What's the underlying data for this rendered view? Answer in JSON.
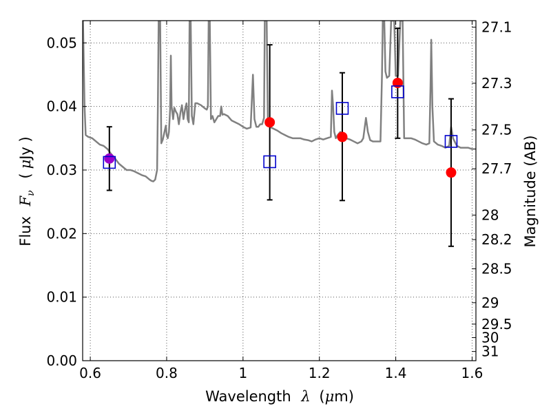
{
  "chart_data": {
    "type": "scatter",
    "xlabel_prefix": "Wavelength",
    "xlabel_symbol": "λ",
    "xlabel_unit_open": "(",
    "xlabel_unit_mu": "μ",
    "xlabel_unit_rest": "m)",
    "ylabel_prefix": "Flux",
    "ylabel_symbol": "F",
    "ylabel_sub": "ν",
    "ylabel_unit_open": "(",
    "ylabel_unit_mu": "μ",
    "ylabel_unit_rest": "Jy )",
    "y2label": "Magnitude (AB)",
    "xlim": [
      0.58,
      1.61
    ],
    "ylim": [
      0.0,
      0.0535
    ],
    "grid": true,
    "x_ticks": [
      {
        "value": 0.6,
        "label": "0.6"
      },
      {
        "value": 0.8,
        "label": "0.8"
      },
      {
        "value": 1.0,
        "label": "1"
      },
      {
        "value": 1.2,
        "label": "1.2"
      },
      {
        "value": 1.4,
        "label": "1.4"
      },
      {
        "value": 1.6,
        "label": "1.6"
      }
    ],
    "y_ticks": [
      {
        "value": 0.0,
        "label": "0.00"
      },
      {
        "value": 0.01,
        "label": "0.01"
      },
      {
        "value": 0.02,
        "label": "0.02"
      },
      {
        "value": 0.03,
        "label": "0.03"
      },
      {
        "value": 0.04,
        "label": "0.04"
      },
      {
        "value": 0.05,
        "label": "0.05"
      }
    ],
    "mag_ticks": [
      {
        "value": 27.1,
        "label": "27.1"
      },
      {
        "value": 27.3,
        "label": "27.3"
      },
      {
        "value": 27.5,
        "label": "27.5"
      },
      {
        "value": 27.7,
        "label": "27.7"
      },
      {
        "value": 28.0,
        "label": "28"
      },
      {
        "value": 28.2,
        "label": "28.2"
      },
      {
        "value": 28.5,
        "label": "28.5"
      },
      {
        "value": 29.0,
        "label": "29"
      },
      {
        "value": 29.5,
        "label": "29.5"
      },
      {
        "value": 30.0,
        "label": "30"
      },
      {
        "value": 31.0,
        "label": "31"
      }
    ],
    "model_spectrum": [
      [
        0.581,
        0.0535
      ],
      [
        0.585,
        0.04
      ],
      [
        0.588,
        0.0355
      ],
      [
        0.595,
        0.0352
      ],
      [
        0.605,
        0.035
      ],
      [
        0.615,
        0.0345
      ],
      [
        0.625,
        0.034
      ],
      [
        0.635,
        0.0338
      ],
      [
        0.645,
        0.0333
      ],
      [
        0.655,
        0.0325
      ],
      [
        0.665,
        0.0318
      ],
      [
        0.675,
        0.031
      ],
      [
        0.685,
        0.0305
      ],
      [
        0.695,
        0.03
      ],
      [
        0.705,
        0.03
      ],
      [
        0.715,
        0.0298
      ],
      [
        0.725,
        0.0295
      ],
      [
        0.735,
        0.0292
      ],
      [
        0.745,
        0.029
      ],
      [
        0.755,
        0.0285
      ],
      [
        0.76,
        0.0283
      ],
      [
        0.765,
        0.0282
      ],
      [
        0.77,
        0.0285
      ],
      [
        0.775,
        0.03
      ],
      [
        0.777,
        0.04
      ],
      [
        0.779,
        0.0535
      ],
      [
        0.783,
        0.0535
      ],
      [
        0.786,
        0.0342
      ],
      [
        0.79,
        0.0348
      ],
      [
        0.795,
        0.0362
      ],
      [
        0.798,
        0.037
      ],
      [
        0.8,
        0.0355
      ],
      [
        0.803,
        0.035
      ],
      [
        0.806,
        0.036
      ],
      [
        0.809,
        0.0395
      ],
      [
        0.811,
        0.048
      ],
      [
        0.813,
        0.04
      ],
      [
        0.817,
        0.038
      ],
      [
        0.82,
        0.0398
      ],
      [
        0.824,
        0.0392
      ],
      [
        0.828,
        0.0388
      ],
      [
        0.832,
        0.0372
      ],
      [
        0.836,
        0.039
      ],
      [
        0.84,
        0.0402
      ],
      [
        0.844,
        0.038
      ],
      [
        0.848,
        0.0395
      ],
      [
        0.852,
        0.0405
      ],
      [
        0.855,
        0.038
      ],
      [
        0.858,
        0.0375
      ],
      [
        0.86,
        0.0535
      ],
      [
        0.863,
        0.0535
      ],
      [
        0.866,
        0.0385
      ],
      [
        0.87,
        0.0372
      ],
      [
        0.875,
        0.0405
      ],
      [
        0.88,
        0.0405
      ],
      [
        0.89,
        0.0402
      ],
      [
        0.9,
        0.0397
      ],
      [
        0.905,
        0.0395
      ],
      [
        0.908,
        0.04
      ],
      [
        0.91,
        0.0535
      ],
      [
        0.913,
        0.0535
      ],
      [
        0.916,
        0.038
      ],
      [
        0.92,
        0.0385
      ],
      [
        0.925,
        0.0375
      ],
      [
        0.93,
        0.038
      ],
      [
        0.935,
        0.0385
      ],
      [
        0.94,
        0.0385
      ],
      [
        0.943,
        0.04
      ],
      [
        0.946,
        0.0387
      ],
      [
        0.95,
        0.0388
      ],
      [
        0.96,
        0.0385
      ],
      [
        0.97,
        0.0378
      ],
      [
        0.98,
        0.0375
      ],
      [
        0.99,
        0.0372
      ],
      [
        1.0,
        0.0368
      ],
      [
        1.01,
        0.0365
      ],
      [
        1.02,
        0.0367
      ],
      [
        1.026,
        0.045
      ],
      [
        1.03,
        0.038
      ],
      [
        1.035,
        0.0368
      ],
      [
        1.04,
        0.0368
      ],
      [
        1.045,
        0.0372
      ],
      [
        1.05,
        0.0372
      ],
      [
        1.055,
        0.0382
      ],
      [
        1.057,
        0.0535
      ],
      [
        1.062,
        0.0535
      ],
      [
        1.065,
        0.0382
      ],
      [
        1.07,
        0.0368
      ],
      [
        1.08,
        0.0365
      ],
      [
        1.09,
        0.0362
      ],
      [
        1.1,
        0.0358
      ],
      [
        1.11,
        0.0355
      ],
      [
        1.12,
        0.0352
      ],
      [
        1.13,
        0.035
      ],
      [
        1.14,
        0.035
      ],
      [
        1.15,
        0.035
      ],
      [
        1.16,
        0.0348
      ],
      [
        1.17,
        0.0347
      ],
      [
        1.18,
        0.0345
      ],
      [
        1.19,
        0.0348
      ],
      [
        1.2,
        0.035
      ],
      [
        1.21,
        0.0348
      ],
      [
        1.22,
        0.035
      ],
      [
        1.23,
        0.0352
      ],
      [
        1.233,
        0.0425
      ],
      [
        1.236,
        0.04
      ],
      [
        1.239,
        0.036
      ],
      [
        1.243,
        0.035
      ],
      [
        1.248,
        0.0355
      ],
      [
        1.255,
        0.036
      ],
      [
        1.26,
        0.0355
      ],
      [
        1.27,
        0.035
      ],
      [
        1.28,
        0.0348
      ],
      [
        1.29,
        0.0345
      ],
      [
        1.3,
        0.0342
      ],
      [
        1.31,
        0.0345
      ],
      [
        1.315,
        0.035
      ],
      [
        1.322,
        0.0382
      ],
      [
        1.327,
        0.036
      ],
      [
        1.333,
        0.0347
      ],
      [
        1.34,
        0.0345
      ],
      [
        1.35,
        0.0345
      ],
      [
        1.36,
        0.0345
      ],
      [
        1.364,
        0.045
      ],
      [
        1.366,
        0.0535
      ],
      [
        1.37,
        0.0535
      ],
      [
        1.373,
        0.0455
      ],
      [
        1.377,
        0.0445
      ],
      [
        1.383,
        0.0448
      ],
      [
        1.388,
        0.0535
      ],
      [
        1.396,
        0.0535
      ],
      [
        1.4,
        0.0448
      ],
      [
        1.406,
        0.0448
      ],
      [
        1.412,
        0.0535
      ],
      [
        1.418,
        0.0535
      ],
      [
        1.422,
        0.035
      ],
      [
        1.43,
        0.035
      ],
      [
        1.44,
        0.035
      ],
      [
        1.45,
        0.0348
      ],
      [
        1.46,
        0.0345
      ],
      [
        1.47,
        0.0342
      ],
      [
        1.48,
        0.034
      ],
      [
        1.488,
        0.0342
      ],
      [
        1.491,
        0.043
      ],
      [
        1.493,
        0.0505
      ],
      [
        1.496,
        0.04
      ],
      [
        1.5,
        0.0345
      ],
      [
        1.51,
        0.034
      ],
      [
        1.52,
        0.0338
      ],
      [
        1.53,
        0.0335
      ],
      [
        1.54,
        0.0338
      ],
      [
        1.545,
        0.0368
      ],
      [
        1.55,
        0.035
      ],
      [
        1.56,
        0.0338
      ],
      [
        1.57,
        0.0335
      ],
      [
        1.58,
        0.0335
      ],
      [
        1.59,
        0.0335
      ],
      [
        1.6,
        0.0333
      ],
      [
        1.61,
        0.0333
      ]
    ],
    "observed": [
      {
        "x": 0.65,
        "y": 0.0318,
        "err_low": 0.0268,
        "err_high": 0.0368,
        "color": "#9b00cc"
      },
      {
        "x": 1.07,
        "y": 0.0375,
        "err_low": 0.0253,
        "err_high": 0.0497,
        "color": "#ff0000"
      },
      {
        "x": 1.26,
        "y": 0.0352,
        "err_low": 0.0252,
        "err_high": 0.0453,
        "color": "#ff0000"
      },
      {
        "x": 1.405,
        "y": 0.0437,
        "err_low": 0.035,
        "err_high": 0.0523,
        "color": "#ff0000"
      },
      {
        "x": 1.545,
        "y": 0.0296,
        "err_low": 0.018,
        "err_high": 0.0412,
        "color": "#ff0000"
      }
    ],
    "model_photometry": [
      {
        "x": 0.65,
        "y": 0.0312
      },
      {
        "x": 1.07,
        "y": 0.0313
      },
      {
        "x": 1.26,
        "y": 0.0397
      },
      {
        "x": 1.405,
        "y": 0.0423
      },
      {
        "x": 1.545,
        "y": 0.0345
      }
    ],
    "colors": {
      "model_line": "#808080",
      "model_square": "#0000cc",
      "errorbar": "#000000",
      "grid": "#555555"
    }
  }
}
